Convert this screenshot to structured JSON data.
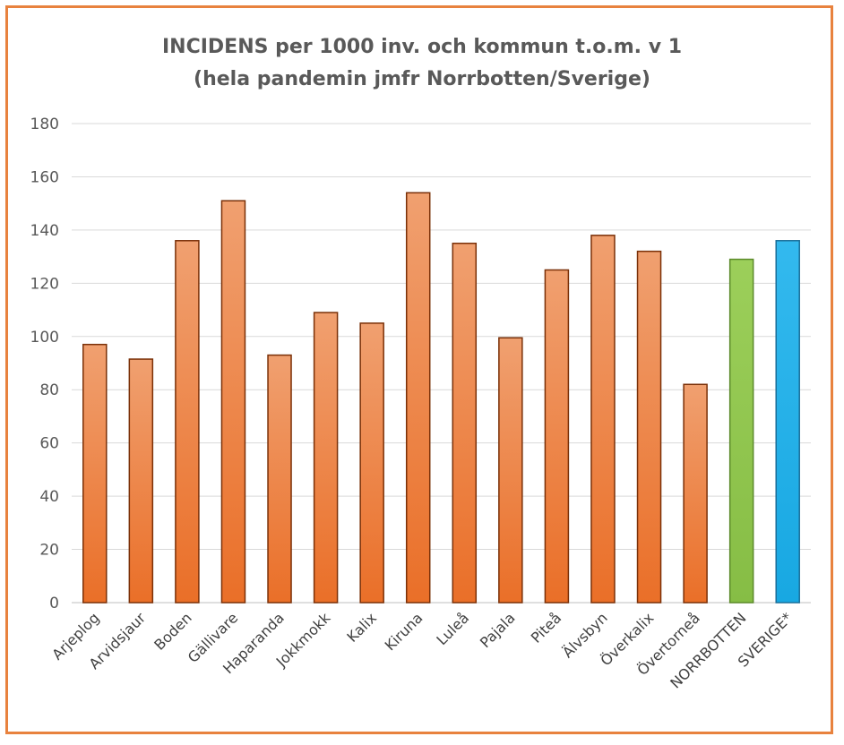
{
  "chart_data": {
    "type": "bar",
    "title": "INCIDENS per 1000 inv. och kommun t.o.m. v 1",
    "subtitle": "(hela pandemin jmfr Norrbotten/Sverige)",
    "categories": [
      "Arjeplog",
      "Arvidsjaur",
      "Boden",
      "Gällivare",
      "Haparanda",
      "Jokkmokk",
      "Kalix",
      "Kiruna",
      "Luleå",
      "Pajala",
      "Piteå",
      "Älvsbyn",
      "Överkalix",
      "Övertorneå",
      "NORRBOTTEN",
      "SVERIGE*"
    ],
    "values": [
      97,
      91.5,
      136,
      151,
      93,
      109,
      105,
      154,
      135,
      99.5,
      125,
      138,
      132,
      82,
      129,
      136
    ],
    "bar_colors": [
      "#ea7a35",
      "#ea7a35",
      "#ea7a35",
      "#ea7a35",
      "#ea7a35",
      "#ea7a35",
      "#ea7a35",
      "#ea7a35",
      "#ea7a35",
      "#ea7a35",
      "#ea7a35",
      "#ea7a35",
      "#ea7a35",
      "#ea7a35",
      "#8fc44e",
      "#1fb0e8"
    ],
    "ylim": [
      0,
      180
    ],
    "yticks": [
      0,
      20,
      40,
      60,
      80,
      100,
      120,
      140,
      160,
      180
    ],
    "grid": true,
    "legend": "none",
    "xlabel": "",
    "ylabel": ""
  }
}
